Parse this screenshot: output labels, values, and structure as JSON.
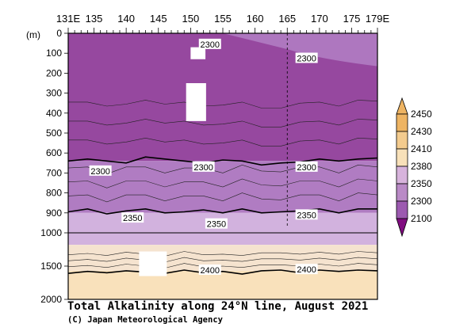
{
  "chart_data": {
    "type": "heatmap",
    "title": "Total Alkalinity along 24°N line, August 2021",
    "credit": "(C) Japan Meteorological Agency",
    "x_ticks": [
      "131E",
      "135",
      "140",
      "145",
      "150",
      "155",
      "160",
      "165",
      "170",
      "175",
      "179E"
    ],
    "x_tick_values": [
      131,
      135,
      140,
      145,
      150,
      155,
      160,
      165,
      170,
      175,
      179
    ],
    "xlim": [
      131,
      179
    ],
    "y_unit": "(m)",
    "y_ticks_upper": [
      "0",
      "100",
      "200",
      "300",
      "400",
      "500",
      "600",
      "700",
      "800",
      "900",
      "1000"
    ],
    "y_ticks_upper_values": [
      0,
      100,
      200,
      300,
      400,
      500,
      600,
      700,
      800,
      900,
      1000
    ],
    "y_ticks_lower": [
      "1500",
      "2000"
    ],
    "y_ticks_lower_values": [
      1500,
      2000
    ],
    "ylim": [
      0,
      2000
    ],
    "y_break": 1000,
    "colorbar": {
      "levels": [
        "2450",
        "2430",
        "2410",
        "2380",
        "2350",
        "2300",
        "2100"
      ],
      "level_values": [
        2450,
        2430,
        2410,
        2380,
        2350,
        2300,
        2100
      ],
      "colors": [
        "#eeb463",
        "#f3cb8e",
        "#f8e1b9",
        "#d7b3dc",
        "#b98ac6",
        "#9c5ab0"
      ]
    },
    "bands": [
      {
        "range": "<2300",
        "color": "#96489f"
      },
      {
        "range": "2300-2350",
        "color": "#b07cc2"
      },
      {
        "range": "2350-2380",
        "color": "#d2b2de"
      },
      {
        "range": "2380-2410",
        "color": "#f5e3cf"
      },
      {
        "range": "2410-2430",
        "color": "#f9e1bb"
      }
    ],
    "contour_labels": [
      {
        "text": "2300",
        "lon": 153,
        "depth": 55
      },
      {
        "text": "2300",
        "lon": 168,
        "depth": 125
      },
      {
        "text": "2300",
        "lon": 136,
        "depth": 690
      },
      {
        "text": "2300",
        "lon": 152,
        "depth": 670
      },
      {
        "text": "2300",
        "lon": 168,
        "depth": 670
      },
      {
        "text": "2350",
        "lon": 141,
        "depth": 925
      },
      {
        "text": "2350",
        "lon": 168,
        "depth": 910
      },
      {
        "text": "2350",
        "lon": 154,
        "depth": 955
      },
      {
        "text": "2400",
        "lon": 153,
        "depth": 1560
      },
      {
        "text": "2400",
        "lon": 168,
        "depth": 1550
      }
    ],
    "isolines": [
      {
        "value": 2300,
        "bold": true,
        "depths": [
          640,
          630,
          640,
          650,
          620,
          630,
          640,
          650,
          635,
          640,
          660,
          650,
          645,
          630,
          640,
          630,
          625
        ]
      },
      {
        "value": 2350,
        "bold": true,
        "depths": [
          895,
          880,
          905,
          890,
          880,
          900,
          895,
          885,
          900,
          880,
          900,
          895,
          890,
          880,
          900,
          880,
          880
        ]
      },
      {
        "value": 2400,
        "bold": true,
        "depths": [
          1610,
          1580,
          1600,
          1570,
          1590,
          1610,
          1560,
          1600,
          1580,
          1620,
          1570,
          1560,
          1600,
          1560,
          1580,
          1560,
          1570
        ]
      }
    ],
    "missing_regions": [
      {
        "lon": [
          150,
          152.3
        ],
        "depth": [
          70,
          130
        ]
      },
      {
        "lon": [
          149.3,
          152.4
        ],
        "depth": [
          250,
          440
        ]
      },
      {
        "lon": [
          142,
          146.3
        ],
        "depth": [
          1280,
          1650
        ]
      }
    ],
    "grid": false,
    "legend_position": "right"
  }
}
